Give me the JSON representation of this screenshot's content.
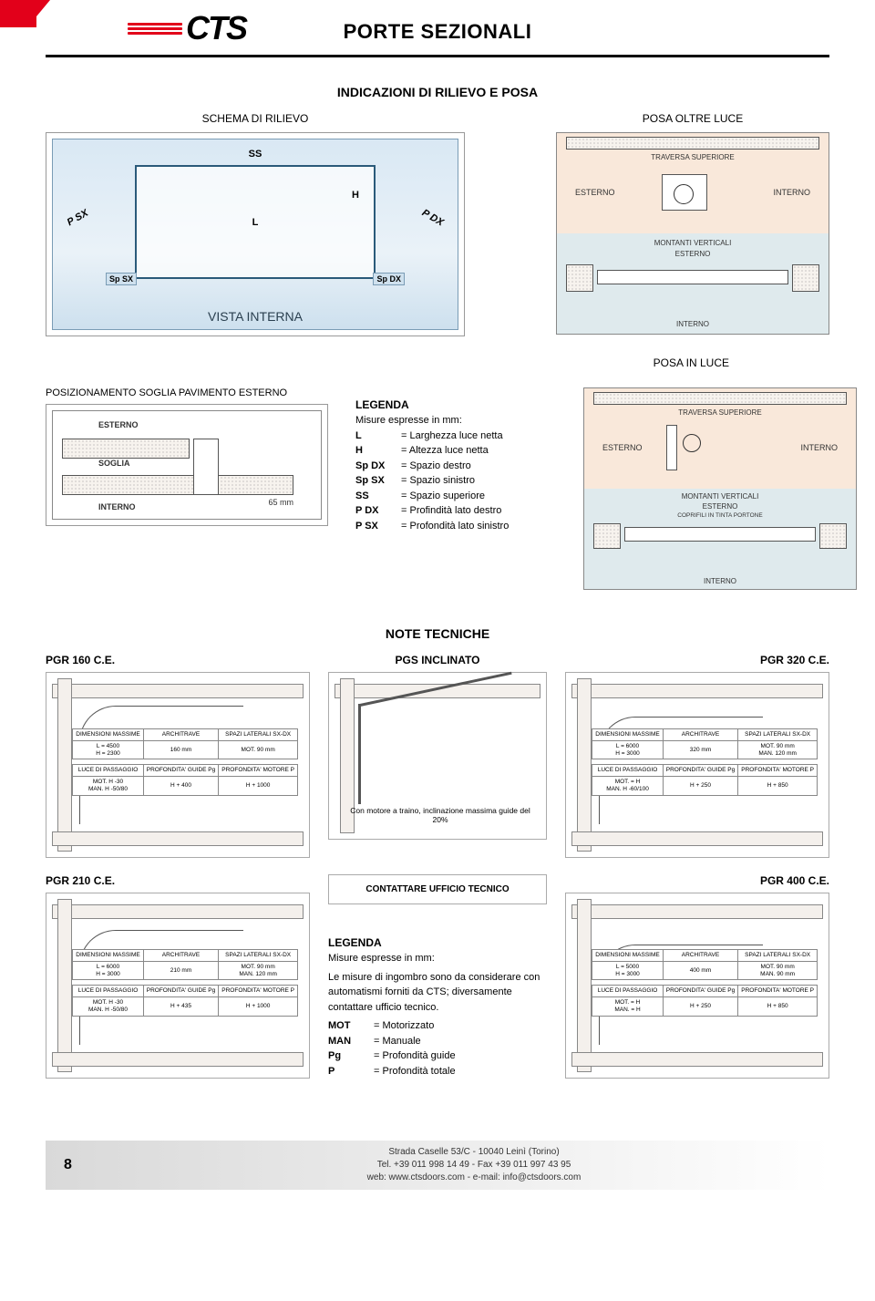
{
  "header": {
    "logo_text": "CTS",
    "title": "PORTE SEZIONALI"
  },
  "s1": {
    "main_title": "INDICAZIONI DI RILIEVO E POSA",
    "schema_label": "SCHEMA DI RILIEVO",
    "posa_oltre_label": "POSA OLTRE LUCE",
    "posa_in_label": "POSA IN LUCE",
    "vista": {
      "label": "VISTA INTERNA",
      "SS": "SS",
      "L": "L",
      "H": "H",
      "PSX": "P SX",
      "PDX": "P DX",
      "SpSX": "Sp SX",
      "SpDX": "Sp DX"
    },
    "mini1": {
      "top": "TRAVERSA SUPERIORE",
      "left": "ESTERNO",
      "right": "INTERNO",
      "low_top": "MONTANTI VERTICALI",
      "low_left": "ESTERNO",
      "low_right": "INTERNO"
    },
    "mini2": {
      "top": "TRAVERSA SUPERIORE",
      "left": "ESTERNO",
      "right": "INTERNO",
      "low_top": "MONTANTI VERTICALI",
      "low_left": "ESTERNO",
      "low_right": "INTERNO",
      "caption": "COPRIFILI IN TINTA PORTONE"
    },
    "soglia_title": "POSIZIONAMENTO SOGLIA PAVIMENTO ESTERNO",
    "soglia": {
      "esterno": "ESTERNO",
      "soglia": "SOGLIA",
      "interno": "INTERNO",
      "mm": "65 mm"
    },
    "legenda": {
      "title": "LEGENDA",
      "intro": "Misure espresse in mm:",
      "items": [
        {
          "k": "L",
          "v": "= Larghezza luce netta"
        },
        {
          "k": "H",
          "v": "= Altezza luce netta"
        },
        {
          "k": "Sp DX",
          "v": "= Spazio destro"
        },
        {
          "k": "Sp SX",
          "v": "= Spazio sinistro"
        },
        {
          "k": "SS",
          "v": "= Spazio superiore"
        },
        {
          "k": "P DX",
          "v": "= Profindità lato destro"
        },
        {
          "k": "P SX",
          "v": "= Profondità lato sinistro"
        }
      ]
    }
  },
  "notes": {
    "title": "NOTE TECNICHE",
    "pgr1": "PGR 160 C.E.",
    "pgr2": "PGR 320 C.E.",
    "pgr3": "PGR 210 C.E.",
    "pgr4": "PGR 400 C.E.",
    "inclinato": "PGS INCLINATO",
    "incl_text": "Con motore a traino, inclinazione massima guide del 20%",
    "incl_box": "CONTATTARE UFFICIO TECNICO",
    "legenda2": {
      "title": "LEGENDA",
      "intro": "Misure espresse in mm:",
      "body": "Le misure di ingombro sono da considerare con automatismi forniti da CTS; diversamente contattare ufficio tecnico.",
      "items": [
        {
          "k": "MOT",
          "v": "= Motorizzato"
        },
        {
          "k": "MAN",
          "v": "= Manuale"
        },
        {
          "k": "Pg",
          "v": "= Profondità guide"
        },
        {
          "k": "P",
          "v": "= Profondità totale"
        }
      ]
    },
    "table1": {
      "h": [
        "DIMENSIONI MASSIME",
        "ARCHITRAVE",
        "SPAZI LATERALI SX-DX"
      ],
      "r1": [
        "L = 4500\nH = 2300",
        "160 mm",
        "MOT. 90 mm"
      ],
      "h2": [
        "LUCE DI PASSAGGIO",
        "PROFONDITA' GUIDE Pg",
        "PROFONDITA' MOTORE P"
      ],
      "r2": [
        "MOT. H -30\nMAN. H -50/80",
        "H + 400",
        "H + 1000"
      ]
    },
    "table2": {
      "h": [
        "DIMENSIONI MASSIME",
        "ARCHITRAVE",
        "SPAZI LATERALI SX-DX"
      ],
      "r1": [
        "L = 6000\nH = 3000",
        "320 mm",
        "MOT. 90 mm\nMAN. 120 mm"
      ],
      "h2": [
        "LUCE DI PASSAGGIO",
        "PROFONDITA' GUIDE Pg",
        "PROFONDITA' MOTORE P"
      ],
      "r2": [
        "MOT. = H\nMAN. H -60/100",
        "H + 250",
        "H + 850"
      ]
    },
    "table3": {
      "h": [
        "DIMENSIONI MASSIME",
        "ARCHITRAVE",
        "SPAZI LATERALI SX-DX"
      ],
      "r1": [
        "L = 6000\nH = 3000",
        "210 mm",
        "MOT. 90 mm\nMAN. 120 mm"
      ],
      "h2": [
        "LUCE DI PASSAGGIO",
        "PROFONDITA' GUIDE Pg",
        "PROFONDITA' MOTORE P"
      ],
      "r2": [
        "MOT. H -30\nMAN. H -50/80",
        "H + 435",
        "H + 1000"
      ]
    },
    "table4": {
      "h": [
        "DIMENSIONI MASSIME",
        "ARCHITRAVE",
        "SPAZI LATERALI SX-DX"
      ],
      "r1": [
        "L = 5000\nH = 3000",
        "400 mm",
        "MOT. 90 mm\nMAN. 90 mm"
      ],
      "h2": [
        "LUCE DI PASSAGGIO",
        "PROFONDITA' GUIDE Pg",
        "PROFONDITA' MOTORE P"
      ],
      "r2": [
        "MOT. = H\nMAN. = H",
        "H + 250",
        "H + 850"
      ]
    }
  },
  "footer": {
    "page": "8",
    "addr1": "Strada Caselle 53/C - 10040 Leinì (Torino)",
    "addr2": "Tel. +39 011 998 14 49 - Fax +39 011 997 43 95",
    "addr3": "web: www.ctsdoors.com - e-mail: info@ctsdoors.com"
  },
  "colors": {
    "accent": "#e2001a",
    "wall_peach": "#f9e8da",
    "wall_blue": "#dfeaed"
  }
}
